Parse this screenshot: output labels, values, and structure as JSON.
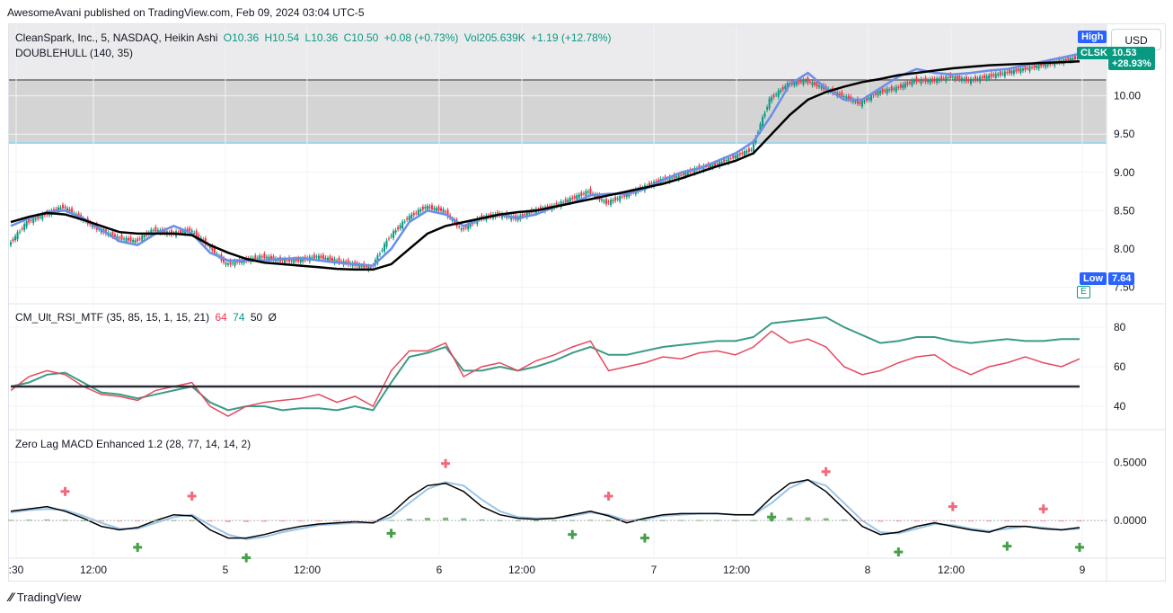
{
  "header": {
    "published": "AwesomeAvani published on TradingView.com, Feb 09, 2024 03:04 UTC-5"
  },
  "main_legend": {
    "symbol": "CleanSpark, Inc., 5, NASDAQ, Heikin Ashi",
    "open": "O10.36",
    "high": "H10.54",
    "low": "L10.36",
    "close": "C10.50",
    "change": "+0.08 (+0.73%)",
    "vol": "Vol205.639K",
    "vol_change": "+1.19 (+12.78%)",
    "indicator": "DOUBLEHULL (140, 35)"
  },
  "price_axis": {
    "currency": "USD",
    "ticks": [
      "10.00",
      "9.50",
      "9.00",
      "8.50",
      "8.00",
      "7.50"
    ],
    "high_label": "High",
    "symbol_tag": "CLSK",
    "price_tag": "10.53",
    "change_tag": "+28.93%",
    "low_label": "Low",
    "low_value": "7.64",
    "e_marker": "E"
  },
  "rsi": {
    "legend_name": "CM_Ult_RSI_MTF (35, 85, 15, 1, 15, 21)",
    "v1": "64",
    "v2": "74",
    "v3": "50",
    "v4": "Ø",
    "ticks": [
      "80",
      "60",
      "40"
    ]
  },
  "macd": {
    "legend": "Zero Lag MACD Enhanced 1.2 (28, 77, 14, 14, 2)",
    "ticks": [
      "0.5000",
      "0.0000"
    ]
  },
  "time_axis": {
    "labels": [
      ":30",
      "12:00",
      "5",
      "12:00",
      "6",
      "12:00",
      "7",
      "12:00",
      "8",
      "12:00",
      "9"
    ]
  },
  "footer": {
    "brand": "TradingView"
  },
  "colors": {
    "up": "#089981",
    "down": "#f23645",
    "hull_fast": "#6b8fe6",
    "hull_slow": "#000000",
    "rsi_teal": "#3b9b86",
    "rsi_red": "#e5495d",
    "zone": "#cccccc"
  },
  "chart_data": [
    {
      "type": "line",
      "title": "CleanSpark, Inc., 5, NASDAQ, Heikin Ashi",
      "ylim": [
        7.4,
        10.9
      ],
      "x": [
        0,
        1,
        2,
        3,
        4,
        5,
        6,
        7,
        8,
        9,
        10,
        11,
        12,
        13,
        14,
        15,
        16,
        17,
        18,
        19,
        20,
        21,
        22,
        23,
        24,
        25,
        26,
        27,
        28,
        29,
        30,
        31,
        32,
        33,
        34,
        35,
        36,
        37,
        38,
        39,
        40,
        41,
        42,
        43,
        44,
        45,
        46,
        47,
        48,
        49,
        50,
        51,
        52,
        53,
        54,
        55,
        56,
        57,
        58,
        59
      ],
      "series": [
        {
          "name": "close",
          "values": [
            8.05,
            8.35,
            8.45,
            8.55,
            8.4,
            8.25,
            8.15,
            8.1,
            8.25,
            8.2,
            8.25,
            8.05,
            7.8,
            7.85,
            7.9,
            7.85,
            7.85,
            7.9,
            7.85,
            7.8,
            7.75,
            8.15,
            8.4,
            8.55,
            8.5,
            8.25,
            8.4,
            8.45,
            8.4,
            8.5,
            8.55,
            8.65,
            8.75,
            8.6,
            8.7,
            8.8,
            8.9,
            8.95,
            9.05,
            9.1,
            9.2,
            9.3,
            9.95,
            10.15,
            10.2,
            10.1,
            10.0,
            9.9,
            10.05,
            10.1,
            10.2,
            10.2,
            10.25,
            10.2,
            10.25,
            10.3,
            10.35,
            10.4,
            10.45,
            10.5
          ]
        },
        {
          "name": "hull_fast",
          "values": [
            8.3,
            8.4,
            8.48,
            8.5,
            8.4,
            8.25,
            8.1,
            8.05,
            8.2,
            8.3,
            8.2,
            7.95,
            7.85,
            7.85,
            7.85,
            7.87,
            7.88,
            7.85,
            7.82,
            7.8,
            7.78,
            8.0,
            8.35,
            8.5,
            8.45,
            8.3,
            8.4,
            8.45,
            8.4,
            8.45,
            8.55,
            8.6,
            8.7,
            8.72,
            8.72,
            8.78,
            8.9,
            9.0,
            9.05,
            9.15,
            9.25,
            9.4,
            9.75,
            10.15,
            10.3,
            10.1,
            9.95,
            9.95,
            10.1,
            10.25,
            10.35,
            10.3,
            10.28,
            10.3,
            10.33,
            10.35,
            10.4,
            10.45,
            10.5,
            10.55
          ]
        },
        {
          "name": "hull_slow",
          "values": [
            8.35,
            8.42,
            8.47,
            8.45,
            8.38,
            8.3,
            8.22,
            8.2,
            8.2,
            8.2,
            8.18,
            8.05,
            7.95,
            7.87,
            7.82,
            7.8,
            7.78,
            7.76,
            7.74,
            7.73,
            7.73,
            7.8,
            8.0,
            8.2,
            8.3,
            8.35,
            8.4,
            8.45,
            8.48,
            8.5,
            8.55,
            8.6,
            8.65,
            8.7,
            8.75,
            8.8,
            8.85,
            8.92,
            9.0,
            9.08,
            9.15,
            9.25,
            9.5,
            9.75,
            9.95,
            10.05,
            10.12,
            10.18,
            10.22,
            10.27,
            10.3,
            10.33,
            10.36,
            10.38,
            10.4,
            10.41,
            10.42,
            10.43,
            10.44,
            10.45
          ]
        }
      ]
    },
    {
      "type": "line",
      "title": "CM_Ult_RSI_MTF (35, 85, 15, 1, 15, 21)",
      "ylim": [
        30,
        90
      ],
      "x": [
        0,
        1,
        2,
        3,
        4,
        5,
        6,
        7,
        8,
        9,
        10,
        11,
        12,
        13,
        14,
        15,
        16,
        17,
        18,
        19,
        20,
        21,
        22,
        23,
        24,
        25,
        26,
        27,
        28,
        29,
        30,
        31,
        32,
        33,
        34,
        35,
        36,
        37,
        38,
        39,
        40,
        41,
        42,
        43,
        44,
        45,
        46,
        47,
        48,
        49,
        50,
        51,
        52,
        53,
        54,
        55,
        56,
        57,
        58,
        59
      ],
      "series": [
        {
          "name": "rsi_current",
          "values": [
            48,
            55,
            58,
            56,
            50,
            46,
            45,
            43,
            48,
            50,
            52,
            40,
            35,
            40,
            42,
            43,
            44,
            46,
            42,
            45,
            40,
            58,
            68,
            68,
            72,
            55,
            60,
            62,
            58,
            63,
            66,
            70,
            73,
            58,
            60,
            62,
            65,
            64,
            67,
            68,
            66,
            70,
            78,
            72,
            74,
            70,
            60,
            56,
            58,
            62,
            65,
            66,
            60,
            56,
            60,
            62,
            65,
            62,
            60,
            64
          ]
        },
        {
          "name": "rsi_htf",
          "values": [
            50,
            52,
            56,
            57,
            52,
            47,
            46,
            44,
            46,
            48,
            50,
            42,
            38,
            40,
            40,
            38,
            39,
            39,
            38,
            40,
            38,
            52,
            65,
            67,
            70,
            58,
            58,
            60,
            58,
            60,
            63,
            67,
            70,
            66,
            66,
            68,
            70,
            71,
            72,
            73,
            73,
            75,
            82,
            83,
            84,
            85,
            80,
            76,
            72,
            73,
            75,
            75,
            73,
            72,
            73,
            74,
            73,
            73,
            74,
            74
          ]
        },
        {
          "name": "midline",
          "values": [
            50,
            50,
            50,
            50,
            50,
            50,
            50,
            50,
            50,
            50,
            50,
            50,
            50,
            50,
            50,
            50,
            50,
            50,
            50,
            50,
            50,
            50,
            50,
            50,
            50,
            50,
            50,
            50,
            50,
            50,
            50,
            50,
            50,
            50,
            50,
            50,
            50,
            50,
            50,
            50,
            50,
            50,
            50,
            50,
            50,
            50,
            50,
            50,
            50,
            50,
            50,
            50,
            50,
            50,
            50,
            50,
            50,
            50,
            50,
            50
          ]
        }
      ]
    },
    {
      "type": "line",
      "title": "Zero Lag MACD Enhanced 1.2 (28, 77, 14, 14, 2)",
      "ylim": [
        -0.3,
        0.75
      ],
      "x": [
        0,
        1,
        2,
        3,
        4,
        5,
        6,
        7,
        8,
        9,
        10,
        11,
        12,
        13,
        14,
        15,
        16,
        17,
        18,
        19,
        20,
        21,
        22,
        23,
        24,
        25,
        26,
        27,
        28,
        29,
        30,
        31,
        32,
        33,
        34,
        35,
        36,
        37,
        38,
        39,
        40,
        41,
        42,
        43,
        44,
        45,
        46,
        47,
        48,
        49,
        50,
        51,
        52,
        53,
        54,
        55,
        56,
        57,
        58,
        59
      ],
      "series": [
        {
          "name": "macd",
          "values": [
            0.08,
            0.1,
            0.12,
            0.08,
            0.02,
            -0.05,
            -0.08,
            -0.06,
            0.0,
            0.05,
            0.04,
            -0.08,
            -0.15,
            -0.15,
            -0.12,
            -0.08,
            -0.05,
            -0.03,
            -0.02,
            -0.01,
            -0.02,
            0.06,
            0.2,
            0.3,
            0.32,
            0.25,
            0.12,
            0.05,
            0.02,
            0.01,
            0.02,
            0.05,
            0.08,
            0.04,
            -0.02,
            0.02,
            0.05,
            0.06,
            0.06,
            0.06,
            0.05,
            0.05,
            0.2,
            0.32,
            0.35,
            0.25,
            0.1,
            -0.05,
            -0.12,
            -0.1,
            -0.05,
            -0.02,
            -0.05,
            -0.08,
            -0.1,
            -0.05,
            -0.05,
            -0.07,
            -0.08,
            -0.06
          ]
        },
        {
          "name": "signal",
          "values": [
            0.07,
            0.09,
            0.1,
            0.09,
            0.04,
            -0.02,
            -0.07,
            -0.07,
            -0.02,
            0.03,
            0.05,
            -0.04,
            -0.12,
            -0.16,
            -0.14,
            -0.1,
            -0.07,
            -0.04,
            -0.03,
            -0.02,
            -0.02,
            0.03,
            0.15,
            0.27,
            0.33,
            0.3,
            0.18,
            0.08,
            0.03,
            0.02,
            0.02,
            0.04,
            0.07,
            0.05,
            0.0,
            0.01,
            0.04,
            0.05,
            0.06,
            0.06,
            0.05,
            0.05,
            0.15,
            0.28,
            0.35,
            0.3,
            0.15,
            0.0,
            -0.1,
            -0.11,
            -0.07,
            -0.03,
            -0.04,
            -0.07,
            -0.09,
            -0.07,
            -0.05,
            -0.06,
            -0.08,
            -0.07
          ]
        }
      ]
    }
  ]
}
